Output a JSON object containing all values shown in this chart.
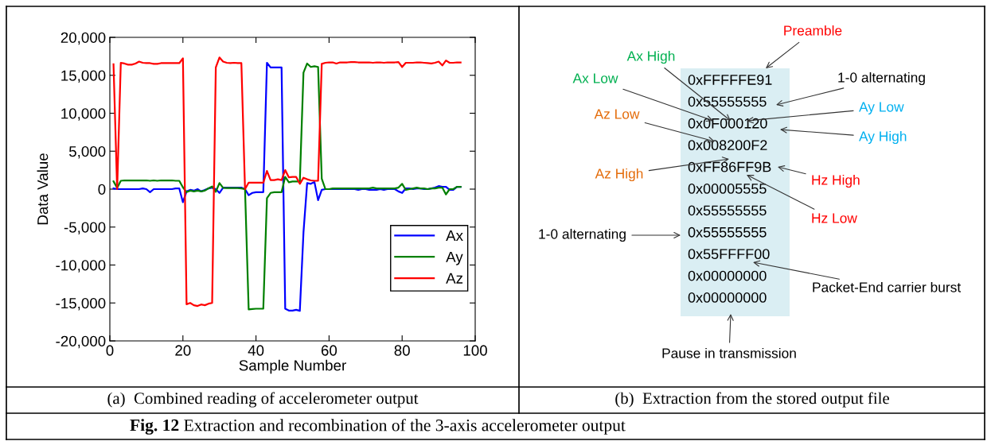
{
  "chart_data": [
    {
      "type": "line",
      "title": "(a)  Combined reading of accelerometer output",
      "xlabel": "Sample Number",
      "ylabel": "Data Value",
      "x": [
        1,
        2,
        3,
        4,
        5,
        6,
        7,
        8,
        9,
        10,
        11,
        12,
        13,
        14,
        15,
        16,
        17,
        18,
        19,
        20,
        21,
        22,
        23,
        24,
        25,
        26,
        27,
        28,
        29,
        30,
        31,
        32,
        33,
        34,
        35,
        36,
        37,
        38,
        39,
        40,
        41,
        42,
        43,
        44,
        45,
        46,
        47,
        48,
        49,
        50,
        51,
        52,
        53,
        54,
        55,
        56,
        57,
        58,
        59,
        60,
        61,
        62,
        63,
        64,
        65,
        66,
        67,
        68,
        69,
        70,
        71,
        72,
        73,
        74,
        75,
        76,
        77,
        78,
        79,
        80,
        81,
        82,
        83,
        84,
        85,
        86,
        87,
        88,
        89,
        90,
        91,
        92,
        93,
        94,
        95,
        96
      ],
      "series": [
        {
          "name": "Ax",
          "color": "#0000ff",
          "values": [
            100,
            0,
            0,
            0,
            0,
            0,
            0,
            0,
            100,
            0,
            -400,
            0,
            0,
            0,
            0,
            0,
            0,
            100,
            100,
            -1720,
            -300,
            -100,
            -200,
            0,
            -300,
            -100,
            100,
            200,
            0,
            -500,
            200,
            200,
            200,
            200,
            200,
            200,
            0,
            -800,
            -500,
            -400,
            -400,
            -400,
            16650,
            16030,
            16030,
            16030,
            16030,
            -15760,
            -16000,
            -16000,
            -15900,
            -16030,
            -5700,
            800,
            700,
            930,
            -1450,
            -100,
            0,
            0,
            0,
            0,
            0,
            0,
            0,
            0,
            0,
            -100,
            0,
            0,
            -100,
            -100,
            -100,
            0,
            -100,
            0,
            0,
            0,
            -300,
            -500,
            100,
            100,
            0,
            100,
            100,
            0,
            0,
            100,
            200,
            400,
            300,
            300,
            -100,
            -100,
            300,
            300
          ]
        },
        {
          "name": "Ay",
          "color": "#008000",
          "values": [
            1030,
            170,
            1100,
            1150,
            1150,
            1150,
            1150,
            1150,
            1150,
            1150,
            1100,
            1150,
            1100,
            1150,
            1150,
            1150,
            1150,
            1100,
            1100,
            240,
            -400,
            -200,
            -300,
            -200,
            -300,
            -200,
            100,
            350,
            -350,
            800,
            170,
            150,
            150,
            150,
            150,
            100,
            0,
            -15860,
            -15800,
            -15760,
            -15760,
            -15760,
            -1200,
            -500,
            -400,
            -400,
            -400,
            1620,
            900,
            1000,
            1000,
            1000,
            15350,
            16550,
            16100,
            16200,
            16100,
            1380,
            0,
            0,
            100,
            100,
            100,
            100,
            100,
            100,
            100,
            100,
            100,
            100,
            100,
            200,
            100,
            100,
            100,
            100,
            100,
            100,
            200,
            700,
            -100,
            0,
            100,
            200,
            100,
            100,
            0,
            100,
            100,
            200,
            200,
            -700,
            0,
            0,
            300,
            300
          ]
        },
        {
          "name": "Az",
          "color": "#ff0000",
          "values": [
            16450,
            0,
            16650,
            16550,
            16400,
            16400,
            16550,
            16800,
            16650,
            16600,
            16600,
            16500,
            16500,
            16600,
            16600,
            16600,
            16600,
            16600,
            16600,
            17240,
            -15170,
            -15000,
            -15300,
            -15400,
            -15200,
            -15300,
            -15100,
            -15000,
            16030,
            17350,
            16800,
            16650,
            16600,
            16650,
            16600,
            16600,
            0,
            860,
            850,
            850,
            850,
            850,
            2400,
            1200,
            1200,
            1300,
            1200,
            2500,
            1550,
            1600,
            1600,
            700,
            1500,
            1300,
            1150,
            1100,
            1100,
            16500,
            16650,
            16700,
            16700,
            16550,
            16700,
            16700,
            16700,
            16750,
            16750,
            16700,
            16700,
            16700,
            16700,
            16650,
            16700,
            16700,
            16650,
            16700,
            16700,
            16700,
            16750,
            16100,
            16650,
            16650,
            16650,
            16700,
            16700,
            16650,
            16600,
            16550,
            16650,
            16800,
            16300,
            16950,
            16650,
            16650,
            16700,
            16700
          ]
        }
      ],
      "xlim": [
        0,
        100
      ],
      "xticks": [
        0,
        20,
        40,
        60,
        80,
        100
      ],
      "ylim": [
        -20000,
        20000
      ],
      "yticks": [
        {
          "value": -20000,
          "label": "-20,000"
        },
        {
          "value": -15000,
          "label": "-15,000"
        },
        {
          "value": -10000,
          "label": "-10,000"
        },
        {
          "value": -5000,
          "label": "-5,000"
        },
        0,
        {
          "value": 5000,
          "label": "5,000"
        },
        {
          "value": 10000,
          "label": "10,000"
        },
        {
          "value": 15000,
          "label": "15,000"
        },
        {
          "value": 20000,
          "label": "20,000"
        }
      ],
      "legend": "bottom right",
      "grid": false,
      "marker": "none",
      "line_style": "solid",
      "annotations": [
        "Fig. 12",
        "Extraction and recombination of the 3-axis accelerometer output"
      ]
    },
    {
      "type": "other",
      "title": "(b)  Extraction from the stored output file",
      "annotations": [
        "Preamble",
        "Ax High",
        "Ax Low",
        "1-0 alternating",
        "Ay Low",
        "Az Low",
        "Ay High",
        "Az High",
        "Hz High",
        "Hz Low",
        "1-0 alternating",
        "Packet-End carrier burst",
        "Pause in transmission",
        "0xFFFFFE91",
        "0x55555555",
        "0x0F000120",
        "0x008200F2",
        "0xFF86FF9B",
        "0x00005555",
        "0x55555555",
        "0x55555555",
        "0x55FFFF00",
        "0x00000000",
        "0x00000000"
      ],
      "colors": [
        "#ff0000",
        "#00b050",
        "#00b050",
        "#000000",
        "#00b0f0",
        "#e46c0a",
        "#00b0f0",
        "#e46c0a",
        "#ff0000",
        "#ff0000",
        "#000000",
        "#000000",
        "#000000",
        "#000000",
        "#000000",
        "#000000",
        "#000000",
        "#000000",
        "#000000",
        "#000000",
        "#000000",
        "#000000",
        "#000000",
        "#000000"
      ]
    }
  ]
}
